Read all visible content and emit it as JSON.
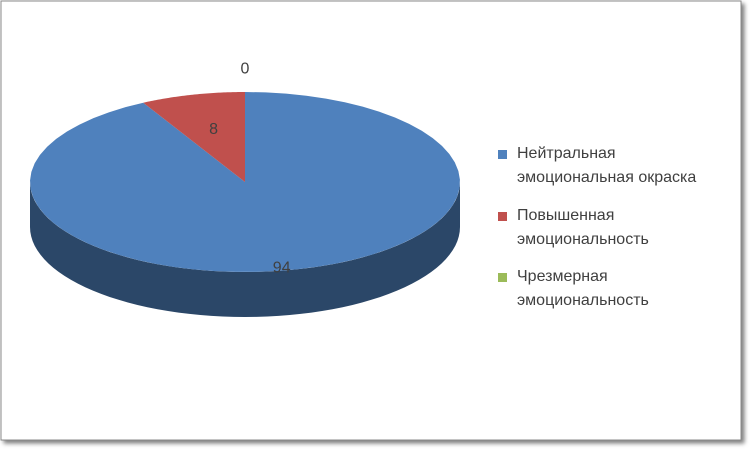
{
  "chart_data": {
    "type": "pie",
    "categories": [
      "Нейтральная эмоциональная окраска",
      "Повышенная эмоциональность",
      "Чрезмерная эмоциональность"
    ],
    "values": [
      94,
      8,
      0
    ],
    "colors": [
      "#4f81bd",
      "#c0504d",
      "#9bbb59"
    ],
    "legend": "right"
  }
}
